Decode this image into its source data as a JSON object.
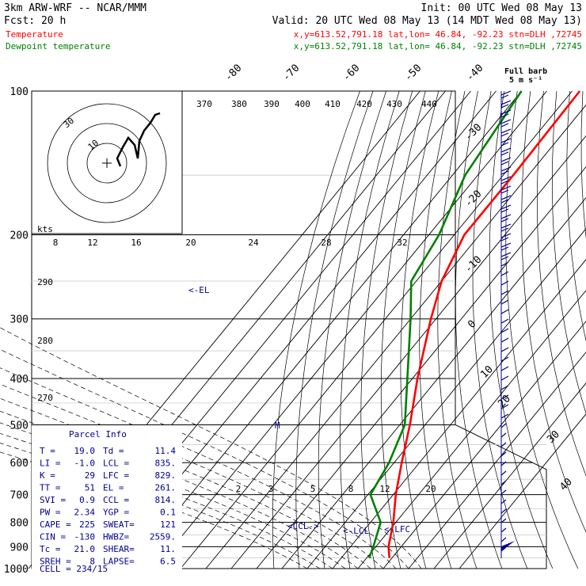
{
  "header": {
    "line1_left": "3km ARW-WRF -- NCAR/MMM",
    "line1_right": "Init: 00 UTC Wed 08 May 13",
    "line2_left": "Fcst:    20 h",
    "line2_right": "Valid: 20 UTC Wed 08 May 13 (14 MDT Wed 08 May 13)",
    "temp_label": "Temperature",
    "dew_label": "Dewpoint temperature",
    "temp_loc": "x,y=613.52,791.18   lat,lon= 46.84, -92.23  stn=DLH ,72745",
    "dew_loc": "x,y=613.52,791.18   lat,lon= 46.84, -92.23  stn=DLH ,72745",
    "temp_color": "#ff0000",
    "dew_color": "#008000"
  },
  "wind_legend": {
    "line1": "Full barb",
    "line2": "5 m s⁻¹"
  },
  "hodograph": {
    "units": "kts",
    "ring_labels": [
      "10",
      "30"
    ]
  },
  "parcel_info": {
    "title": "Parcel Info",
    "rows": [
      [
        "T  =",
        "19.0",
        "Td =",
        "11.4"
      ],
      [
        "LI =",
        "-1.0",
        "LCL =",
        "835."
      ],
      [
        "K  =",
        "29",
        "LFC =",
        "829."
      ],
      [
        "TT =",
        "51",
        "EL =",
        "261."
      ],
      [
        "SVI =",
        "0.9",
        "CCL =",
        "814."
      ],
      [
        "PW =",
        "2.34",
        "YGP =",
        "0.1"
      ],
      [
        "CAPE =",
        "225",
        "SWEAT=",
        "121"
      ],
      [
        "CIN =",
        "-130",
        "HWBZ=",
        "2559."
      ],
      [
        "Tc =",
        "21.0",
        "SHEAR=",
        "11."
      ],
      [
        "SREH =",
        "8",
        "LAPSE=",
        "6.5"
      ]
    ],
    "cell": "CELL = 234/15"
  },
  "markers": {
    "el": "<-EL",
    "ccl": "<CCL->",
    "lcl": "<-LCL",
    "lfc": "<-LFC",
    "m": "M"
  },
  "chart_data": {
    "type": "skew-t",
    "pressure_levels": [
      100,
      200,
      300,
      400,
      500,
      600,
      700,
      800,
      900,
      1000
    ],
    "pressure_labels": [
      "100",
      "200",
      "300",
      "400",
      "500",
      "600",
      "700",
      "800",
      "900",
      "1000"
    ],
    "isotherm_labels": [
      "-80",
      "-70",
      "-60",
      "-50",
      "-40",
      "-30",
      "-20",
      "-10",
      "0",
      "10",
      "20",
      "30",
      "40"
    ],
    "theta_labels": [
      "370",
      "380",
      "390",
      "400",
      "410",
      "420",
      "430",
      "440"
    ],
    "mixing_ratio_labels": [
      "8",
      "12",
      "16",
      "20",
      "24",
      "28",
      "32"
    ],
    "mixing_ratio_low_labels": [
      "2",
      "3",
      "5",
      "8",
      "12",
      "20"
    ],
    "adiabat_labels": [
      "290",
      "280",
      "270"
    ],
    "temperature": [
      [
        100,
        -57
      ],
      [
        150,
        -56
      ],
      [
        200,
        -56
      ],
      [
        250,
        -50
      ],
      [
        300,
        -42
      ],
      [
        400,
        -28
      ],
      [
        500,
        -16
      ],
      [
        600,
        -7
      ],
      [
        700,
        1
      ],
      [
        800,
        9
      ],
      [
        900,
        15
      ],
      [
        950,
        19
      ]
    ],
    "dewpoint": [
      [
        100,
        -80
      ],
      [
        150,
        -75
      ],
      [
        200,
        -66
      ],
      [
        250,
        -62
      ],
      [
        300,
        -50
      ],
      [
        400,
        -32
      ],
      [
        500,
        -18
      ],
      [
        600,
        -12
      ],
      [
        700,
        -9
      ],
      [
        800,
        4
      ],
      [
        900,
        9
      ],
      [
        950,
        11
      ]
    ]
  }
}
